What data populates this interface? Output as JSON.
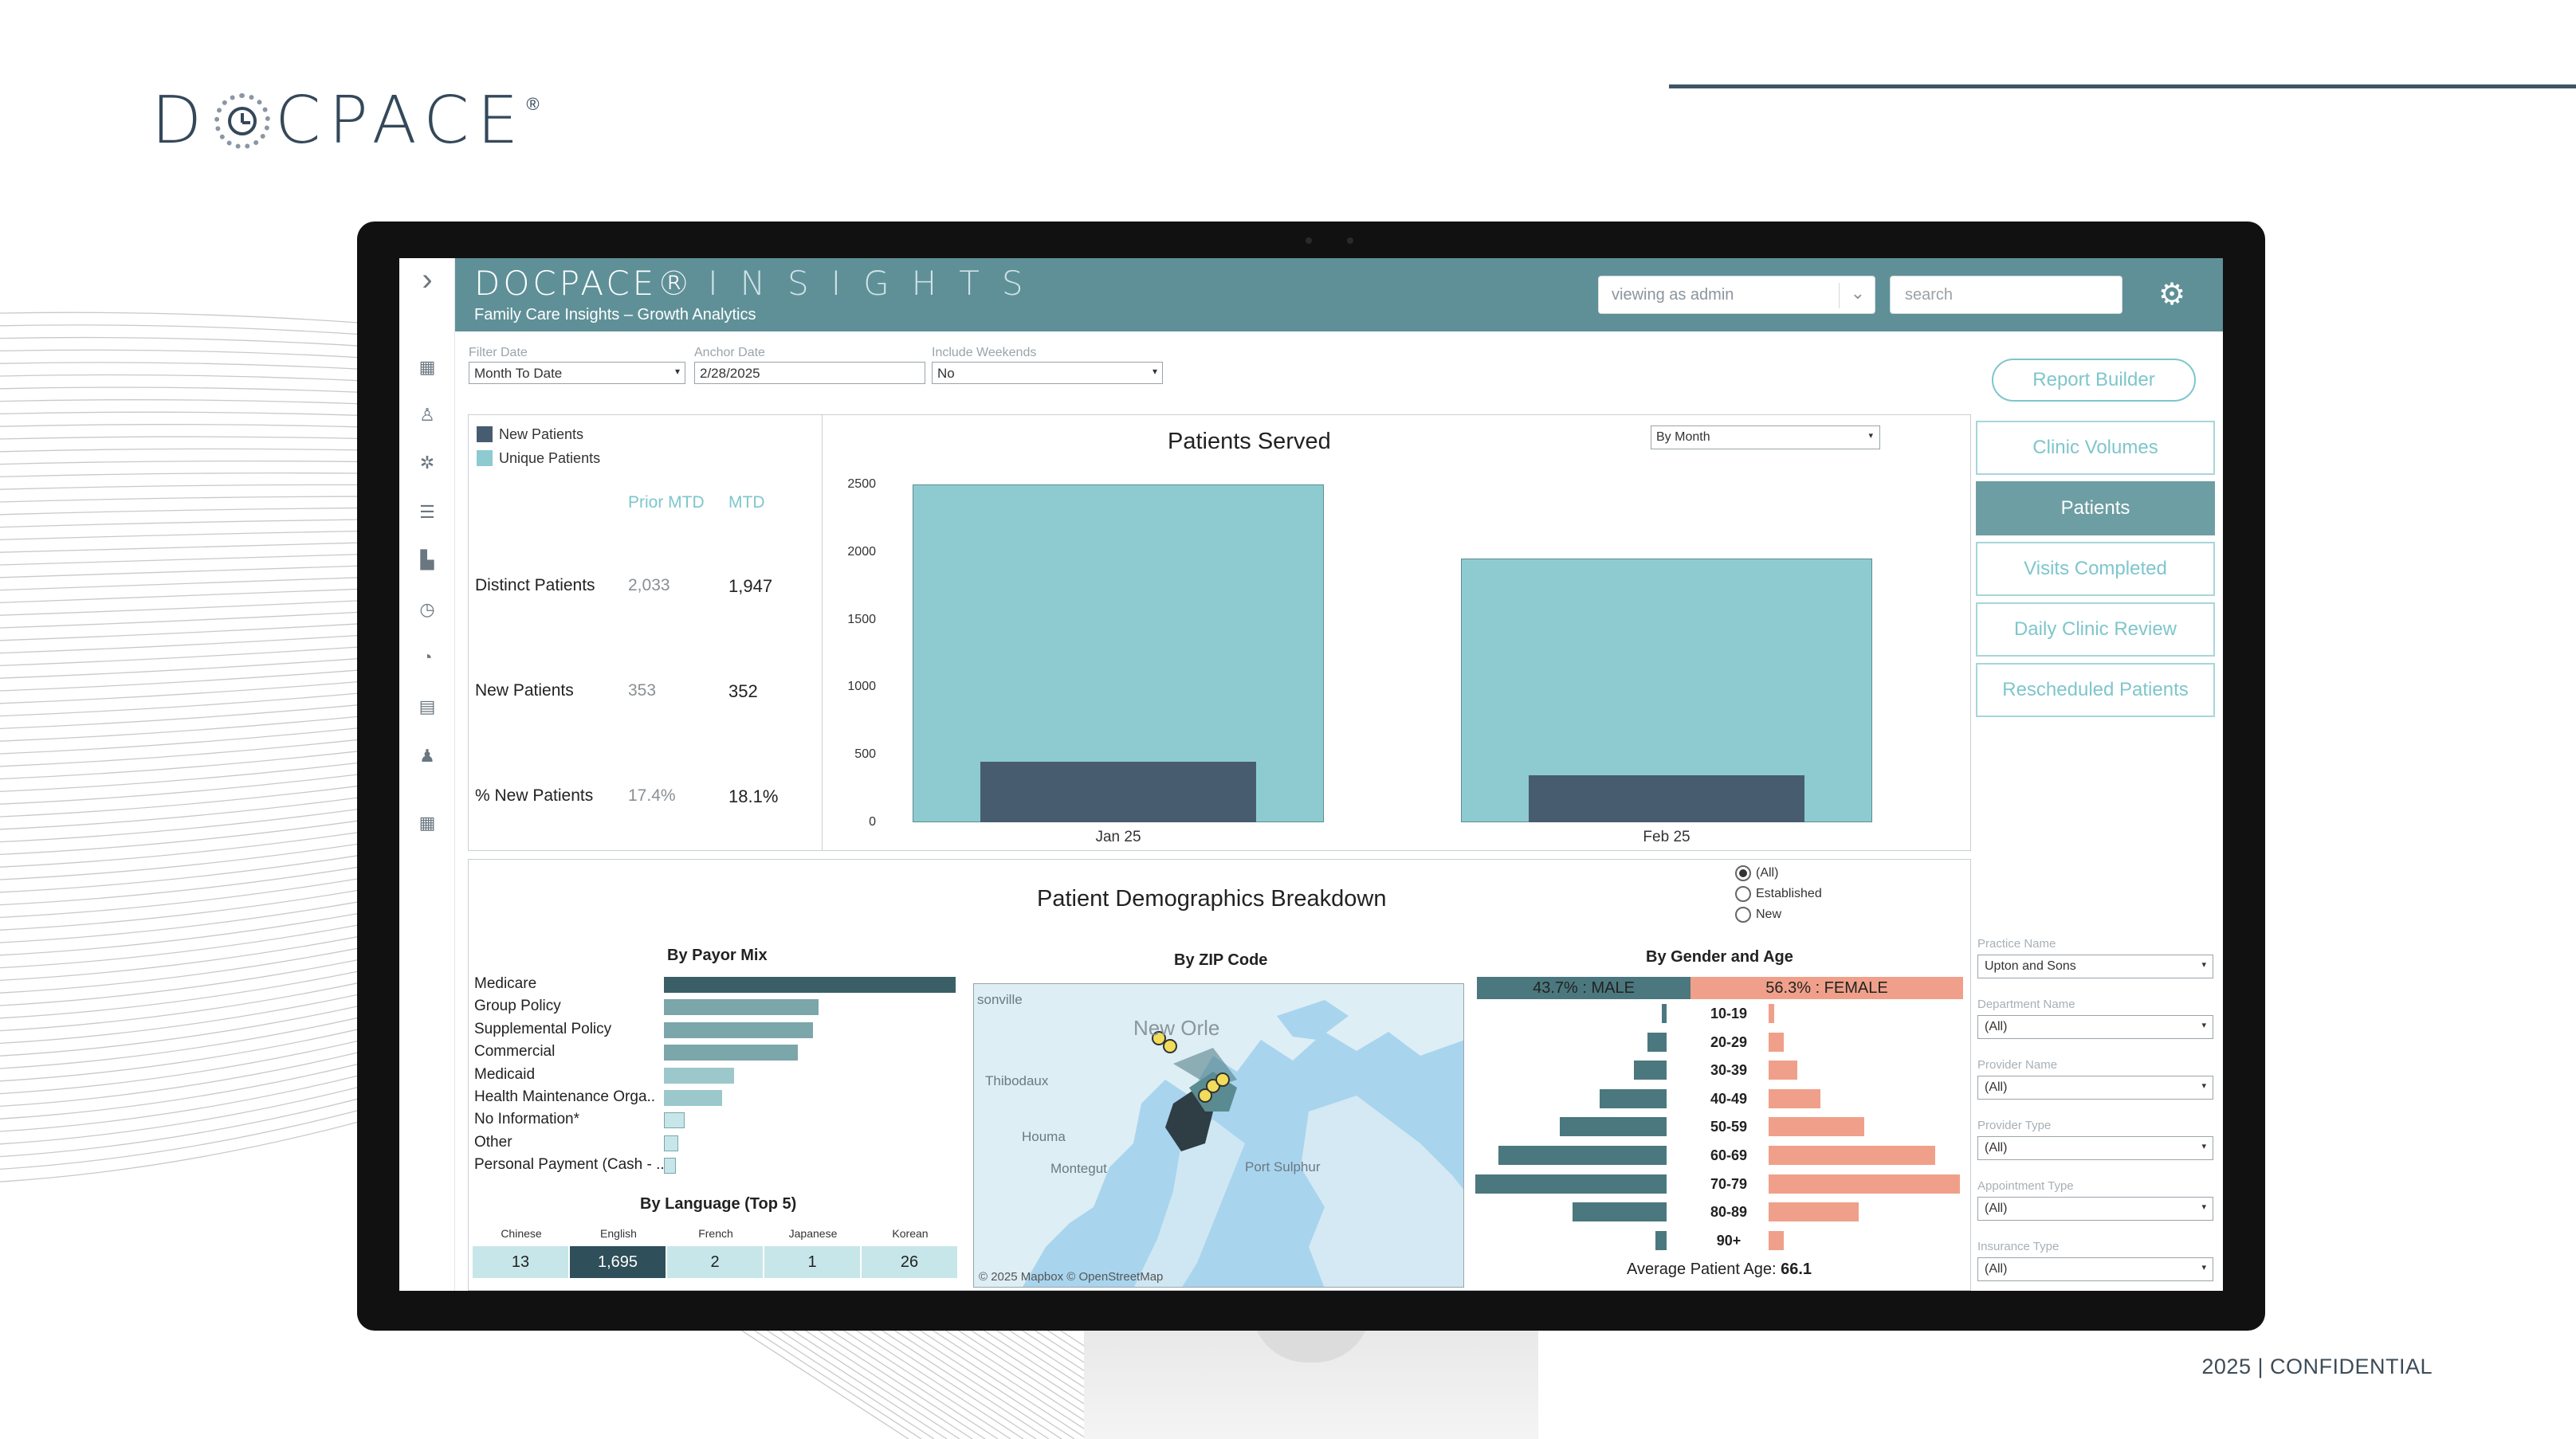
{
  "slide": {
    "logo_pre": "D",
    "logo_post": "CPACE",
    "logo_reg": "®",
    "footer": "2025 | CONFIDENTIAL"
  },
  "app": {
    "brand": "DOCPACE®",
    "brand_suffix": "INSIGHTS",
    "subtitle": "Family Care Insights – Growth Analytics",
    "viewing_as": "viewing as admin",
    "search_placeholder": "search"
  },
  "filters": {
    "filter_date": {
      "label": "Filter Date",
      "value": "Month To Date"
    },
    "anchor_date": {
      "label": "Anchor Date",
      "value": "2/28/2025"
    },
    "include_weekends": {
      "label": "Include Weekends",
      "value": "No"
    }
  },
  "report_builder": "Report Builder",
  "nav": [
    {
      "label": "Clinic Volumes",
      "active": false
    },
    {
      "label": "Patients",
      "active": true
    },
    {
      "label": "Visits Completed",
      "active": false
    },
    {
      "label": "Daily Clinic Review",
      "active": false
    },
    {
      "label": "Rescheduled Patients",
      "active": false
    }
  ],
  "right_filters": [
    {
      "label": "Practice Name",
      "value": "Upton and Sons"
    },
    {
      "label": "Department Name",
      "value": "(All)"
    },
    {
      "label": "Provider Name",
      "value": "(All)"
    },
    {
      "label": "Provider Type",
      "value": "(All)"
    },
    {
      "label": "Appointment Type",
      "value": "(All)"
    },
    {
      "label": "Insurance Type",
      "value": "(All)"
    }
  ],
  "kpi": {
    "legend": [
      {
        "label": "New Patients",
        "color": "#485c70"
      },
      {
        "label": "Unique Patients",
        "color": "#8dcbd0"
      }
    ],
    "col_prior": "Prior MTD",
    "col_mtd": "MTD",
    "rows": [
      {
        "label": "Distinct Patients",
        "prior": "2,033",
        "mtd": "1,947"
      },
      {
        "label": "New Patients",
        "prior": "353",
        "mtd": "352"
      },
      {
        "label": "% New Patients",
        "prior": "17.4%",
        "mtd": "18.1%"
      }
    ]
  },
  "chart_data": {
    "type": "bar",
    "title": "Patients Served",
    "period_selector": "By Month",
    "categories": [
      "Jan 25",
      "Feb 25"
    ],
    "series": [
      {
        "name": "Unique Patients",
        "values": [
          2500,
          1950
        ],
        "color": "#8dcbd0"
      },
      {
        "name": "New Patients",
        "values": [
          450,
          350
        ],
        "color": "#485c70"
      }
    ],
    "ylim": [
      0,
      2500
    ],
    "yticks": [
      "2500",
      "2000",
      "1500",
      "1000",
      "500",
      "0"
    ]
  },
  "demographics": {
    "title": "Patient Demographics Breakdown",
    "radio": [
      {
        "label": "(All)",
        "selected": true
      },
      {
        "label": "Established",
        "selected": false
      },
      {
        "label": "New",
        "selected": false
      }
    ],
    "payor_title": "By Payor Mix",
    "payor": [
      {
        "label": "Medicare",
        "value": 1.0,
        "color": "#3b5f66"
      },
      {
        "label": "Group Policy",
        "value": 0.53,
        "color": "#7ba6aa"
      },
      {
        "label": "Supplemental Policy",
        "value": 0.51,
        "color": "#7ba6aa"
      },
      {
        "label": "Commercial",
        "value": 0.46,
        "color": "#7ba6aa"
      },
      {
        "label": "Medicaid",
        "value": 0.24,
        "color": "#9cc8cc"
      },
      {
        "label": "Health Maintenance Orga..",
        "value": 0.2,
        "color": "#9cc8cc"
      },
      {
        "label": "No Information*",
        "value": 0.07,
        "color": "#c7e6e9"
      },
      {
        "label": "Other",
        "value": 0.05,
        "color": "#c7e6e9"
      },
      {
        "label": "Personal Payment (Cash - ..",
        "value": 0.04,
        "color": "#c7e6e9"
      }
    ],
    "language_title": "By Language (Top 5)",
    "languages": [
      {
        "label": "Chinese",
        "value": "13"
      },
      {
        "label": "English",
        "value": "1,695"
      },
      {
        "label": "French",
        "value": "2"
      },
      {
        "label": "Japanese",
        "value": "1"
      },
      {
        "label": "Korean",
        "value": "26"
      }
    ],
    "zip_title": "By ZIP Code",
    "map_labels": [
      "New Orle",
      "Thibodaux",
      "Houma",
      "Montegut",
      "Port Sulphur",
      "sonville"
    ],
    "map_credit": "© 2025 Mapbox  © OpenStreetMap",
    "gender_title": "By Gender and Age",
    "male_label": "43.7% : MALE",
    "female_label": "56.3% : FEMALE",
    "age_groups": [
      {
        "label": "10-19",
        "male": 0.02,
        "female": 0.03
      },
      {
        "label": "20-29",
        "male": 0.1,
        "female": 0.08
      },
      {
        "label": "30-39",
        "male": 0.17,
        "female": 0.15
      },
      {
        "label": "40-49",
        "male": 0.35,
        "female": 0.27
      },
      {
        "label": "50-59",
        "male": 0.56,
        "female": 0.5
      },
      {
        "label": "60-69",
        "male": 0.88,
        "female": 0.87
      },
      {
        "label": "70-79",
        "male": 1.0,
        "female": 1.0
      },
      {
        "label": "80-89",
        "male": 0.49,
        "female": 0.47
      },
      {
        "label": "90+",
        "male": 0.06,
        "female": 0.08
      }
    ],
    "avg_age_label": "Average Patient Age:",
    "avg_age_value": "66.1"
  }
}
